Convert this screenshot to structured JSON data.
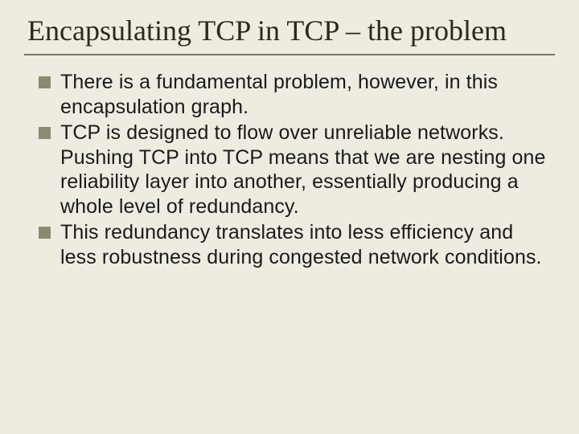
{
  "slide": {
    "title": "Encapsulating TCP in TCP – the problem",
    "bullets": [
      "There is a fundamental problem, however, in this encapsulation graph.",
      "TCP is designed to flow over unreliable networks.  Pushing TCP into TCP means that we are nesting one reliability layer into another, essentially producing a whole level of redundancy.",
      "This redundancy translates into less efficiency and less robustness during congested network conditions."
    ],
    "colors": {
      "background": "#eeece1",
      "rule": "#7a7a60",
      "bullet": "#8b8b70",
      "title_text": "#2a2a1a",
      "body_text": "#1a1a1a"
    },
    "typography": {
      "title_font": "Times New Roman",
      "title_size_pt": 36,
      "body_font": "Arial",
      "body_size_pt": 25
    }
  }
}
